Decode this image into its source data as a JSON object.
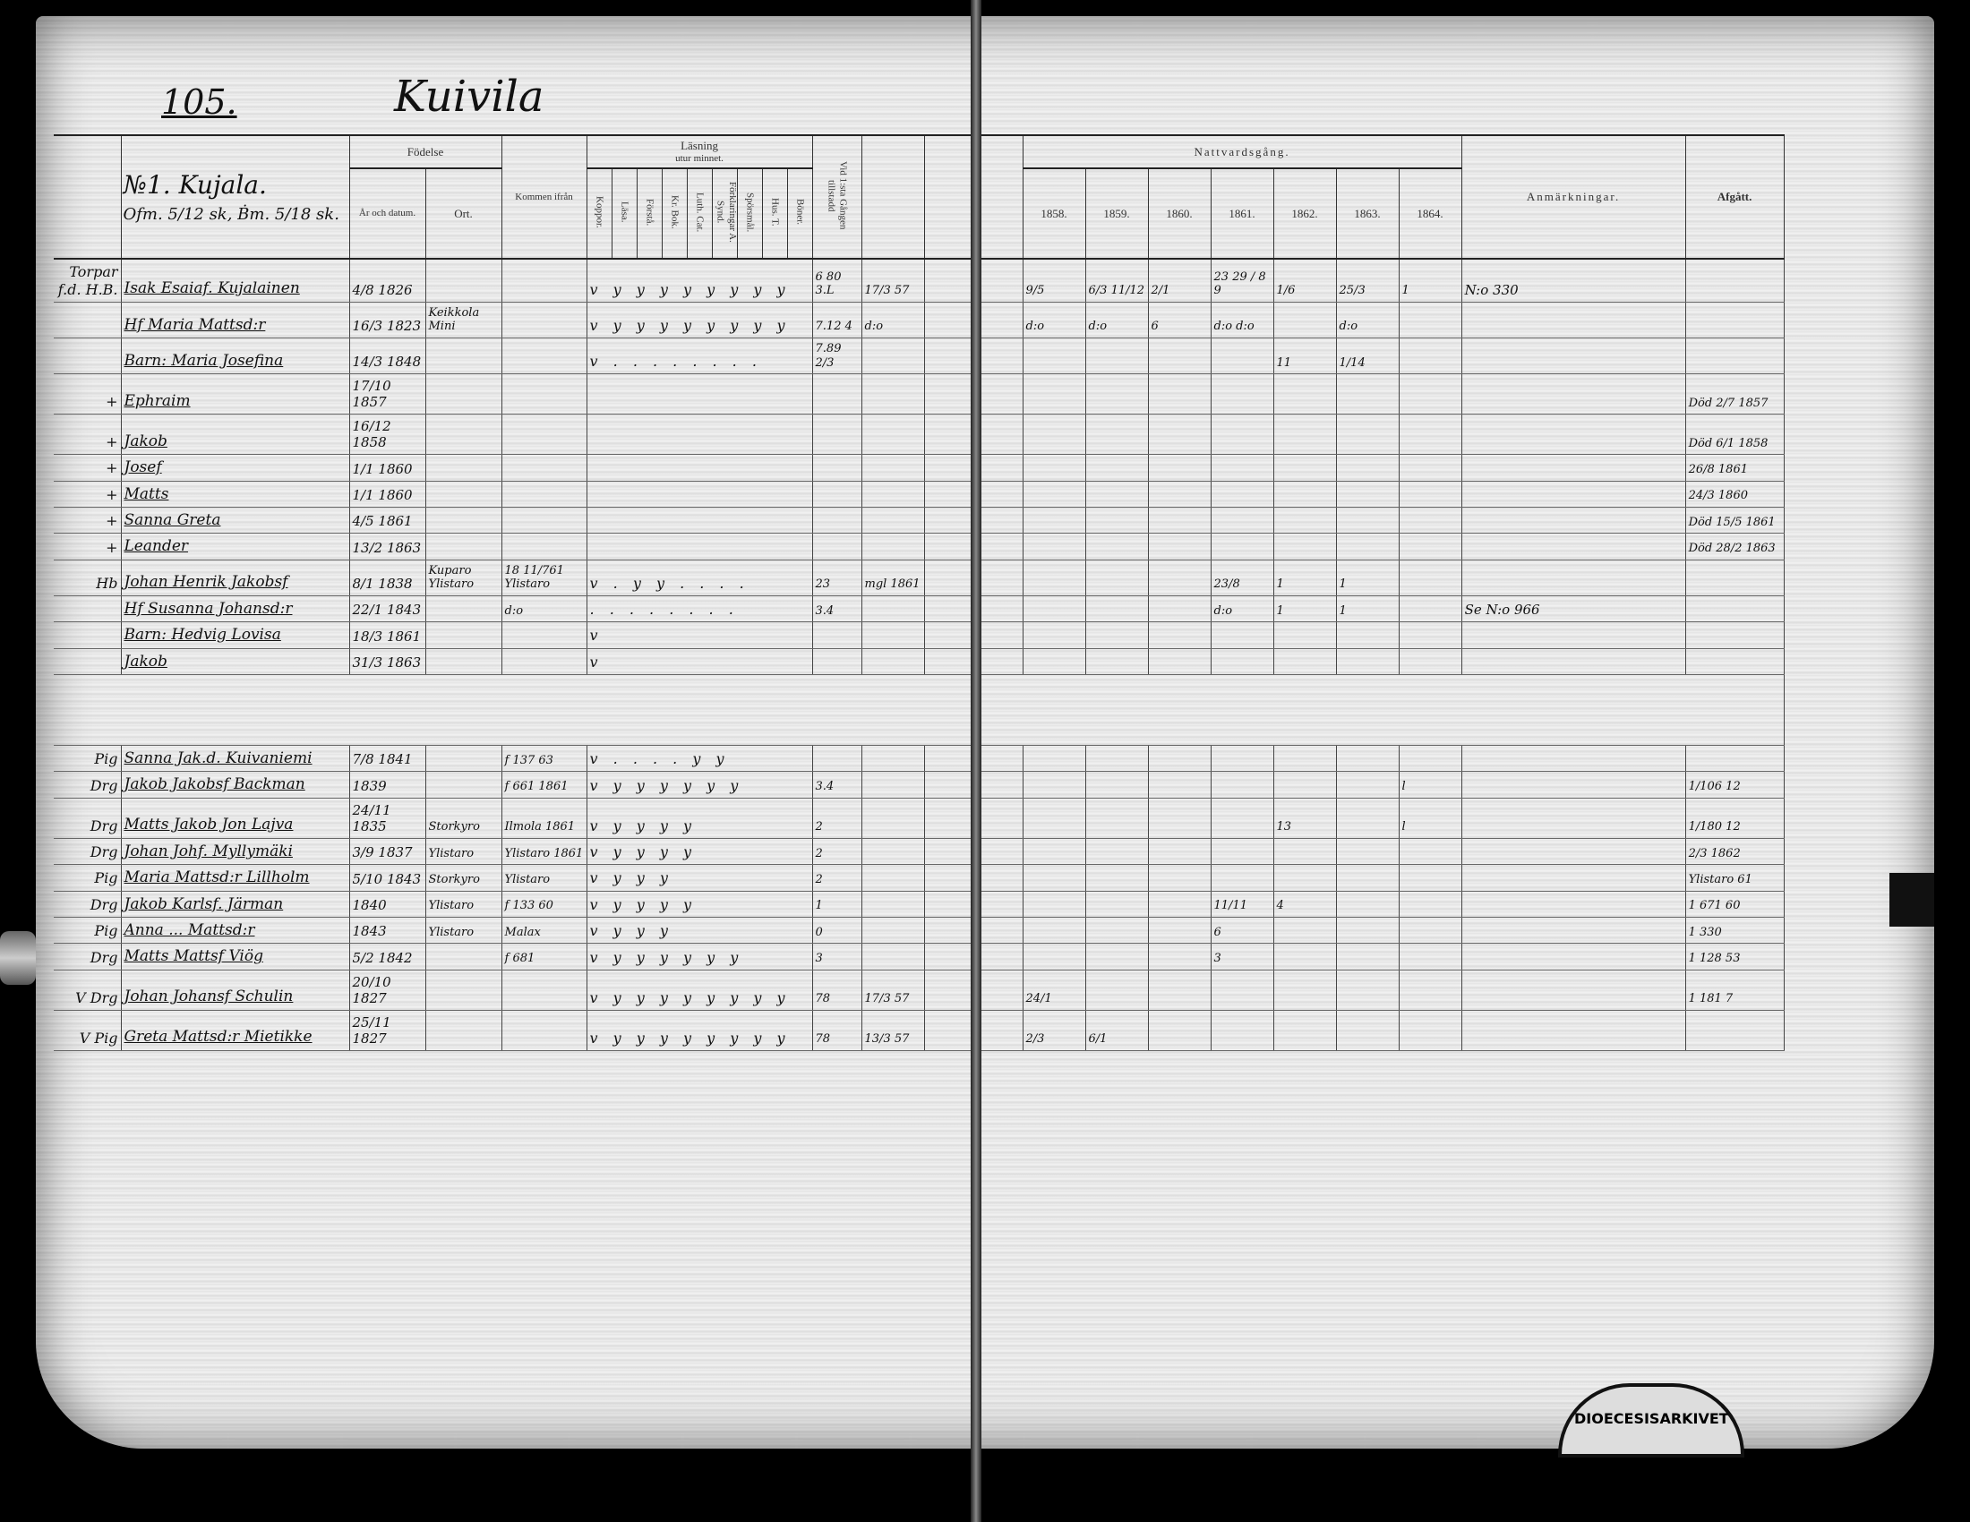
{
  "title": {
    "page_number": "105.",
    "village": "Kuivila"
  },
  "farm": {
    "name": "№1. Kujala.",
    "tax": "Ofm. 5/12 sk, Ḃm. 5/18 sk."
  },
  "headers": {
    "birth": "Födelse",
    "birth_year": "År och datum.",
    "birth_place": "Ort.",
    "came_from": "Kommen ifrån",
    "reading": "Läsning",
    "reading_sub": "utur minnet.",
    "cols": [
      "Koppor.",
      "Läsa.",
      "Förstå.",
      "Kr. Bok.",
      "Luth. Cat.",
      "Förklaringar A. Synd.",
      "Spörsmål.",
      "Hus. T.",
      "Böner."
    ],
    "communion_allowed": "Vid 1:sta Gången tillstadd",
    "communion": "Nattvardsgång.",
    "years": [
      "1858.",
      "1859.",
      "1860.",
      "1861.",
      "1862.",
      "1863.",
      "1864."
    ],
    "remarks": "Anmärkningar.",
    "departed": "Afgått."
  },
  "entries": [
    {
      "mark": "Torpar f.d. H.B.",
      "name": "Isak Esaiaf. Kujalainen",
      "birth": "4/8 1826",
      "place": "",
      "from": "",
      "reading": "v y y y y y y y y",
      "allowed": "6 80 3.L",
      "note": "17/3 57",
      "communion": [
        "9/5",
        "6/3 11/12",
        "2/1",
        "23 29 / 8 9",
        "1/6",
        "25/3",
        "1"
      ],
      "remark": "N:o 330",
      "departed": ""
    },
    {
      "mark": "",
      "name": "Hf Maria Mattsd:r",
      "birth": "16/3 1823",
      "place": "Keikkola Mini",
      "from": "",
      "reading": "v y y y y y y y y",
      "allowed": "7.12 4",
      "note": "d:o",
      "communion": [
        "d:o",
        "d:o",
        "6",
        "d:o d:o",
        "",
        "d:o",
        ""
      ],
      "remark": "",
      "departed": ""
    },
    {
      "mark": "",
      "name": "Barn: Maria Josefina",
      "birth": "14/3 1848",
      "place": "",
      "from": "",
      "reading": "v . . . . . . . .",
      "allowed": "7.89 2/3",
      "note": "",
      "communion": [
        "",
        "",
        "",
        "",
        "11",
        "1/14",
        ""
      ],
      "remark": "",
      "departed": ""
    },
    {
      "mark": "+",
      "name": "Ephraim",
      "birth": "17/10 1857",
      "place": "",
      "from": "",
      "reading": "",
      "allowed": "",
      "note": "",
      "communion": [
        "",
        "",
        "",
        "",
        "",
        "",
        ""
      ],
      "remark": "",
      "departed": "Död 2/7 1857"
    },
    {
      "mark": "+",
      "name": "Jakob",
      "birth": "16/12 1858",
      "place": "",
      "from": "",
      "reading": "",
      "allowed": "",
      "note": "",
      "communion": [
        "",
        "",
        "",
        "",
        "",
        "",
        ""
      ],
      "remark": "",
      "departed": "Död 6/1 1858"
    },
    {
      "mark": "+",
      "name": "Josef",
      "birth": "1/1 1860",
      "place": "",
      "from": "",
      "reading": "",
      "allowed": "",
      "note": "",
      "communion": [
        "",
        "",
        "",
        "",
        "",
        "",
        ""
      ],
      "remark": "",
      "departed": "26/8 1861"
    },
    {
      "mark": "+",
      "name": "Matts",
      "birth": "1/1 1860",
      "place": "",
      "from": "",
      "reading": "",
      "allowed": "",
      "note": "",
      "communion": [
        "",
        "",
        "",
        "",
        "",
        "",
        ""
      ],
      "remark": "",
      "departed": "24/3 1860"
    },
    {
      "mark": "+",
      "name": "Sanna Greta",
      "birth": "4/5 1861",
      "place": "",
      "from": "",
      "reading": "",
      "allowed": "",
      "note": "",
      "communion": [
        "",
        "",
        "",
        "",
        "",
        "",
        ""
      ],
      "remark": "",
      "departed": "Död 15/5 1861"
    },
    {
      "mark": "+",
      "name": "Leander",
      "birth": "13/2 1863",
      "place": "",
      "from": "",
      "reading": "",
      "allowed": "",
      "note": "",
      "communion": [
        "",
        "",
        "",
        "",
        "",
        "",
        ""
      ],
      "remark": "",
      "departed": "Död 28/2 1863"
    },
    {
      "mark": "Hb",
      "name": "Johan Henrik Jakobsf",
      "birth": "8/1 1838",
      "place": "Kuparo Ylistaro",
      "from": "18 11/761 Ylistaro",
      "reading": "v . y y . . . .",
      "allowed": "23",
      "note": "mgl 1861",
      "communion": [
        "",
        "",
        "",
        "23/8",
        "1",
        "1",
        ""
      ],
      "remark": "",
      "departed": ""
    },
    {
      "mark": "",
      "name": "Hf Susanna Johansd:r",
      "birth": "22/1 1843",
      "place": "",
      "from": "d:o",
      "reading": ". . . . . . . .",
      "allowed": "3.4",
      "note": "",
      "communion": [
        "",
        "",
        "",
        "d:o",
        "1",
        "1",
        ""
      ],
      "remark": "Se N:o 966",
      "departed": ""
    },
    {
      "mark": "",
      "name": "Barn: Hedvig Lovisa",
      "birth": "18/3 1861",
      "place": "",
      "from": "",
      "reading": "v",
      "allowed": "",
      "note": "",
      "communion": [
        "",
        "",
        "",
        "",
        "",
        "",
        ""
      ],
      "remark": "",
      "departed": ""
    },
    {
      "mark": "",
      "name": "Jakob",
      "birth": "31/3 1863",
      "place": "",
      "from": "",
      "reading": "v",
      "allowed": "",
      "note": "",
      "communion": [
        "",
        "",
        "",
        "",
        "",
        "",
        ""
      ],
      "remark": "",
      "departed": ""
    }
  ],
  "servants": [
    {
      "mark": "Pig",
      "name": "Sanna Jak.d. Kuivaniemi",
      "birth": "7/8 1841",
      "place": "",
      "from": "f 137 63",
      "reading": "v . . . . y y",
      "allowed": "",
      "note": "",
      "communion": [
        "",
        "",
        "",
        "",
        "",
        "",
        ""
      ],
      "remark": "",
      "departed": ""
    },
    {
      "mark": "Drg",
      "name": "Jakob Jakobsf Backman",
      "birth": "1839",
      "place": "",
      "from": "f 661 1861",
      "reading": "v y y y y y y",
      "allowed": "3.4",
      "note": "",
      "communion": [
        "",
        "",
        "",
        "",
        "",
        "",
        "l"
      ],
      "remark": "",
      "departed": "1/106 12"
    },
    {
      "mark": "Drg",
      "name": "Matts Jakob Jon Lajva",
      "birth": "24/11 1835",
      "place": "Storkyro",
      "from": "Ilmola 1861",
      "reading": "v y y y y",
      "allowed": "2",
      "note": "",
      "communion": [
        "",
        "",
        "",
        "",
        "13",
        "",
        "l"
      ],
      "remark": "",
      "departed": "1/180 12"
    },
    {
      "mark": "Drg",
      "name": "Johan Johf. Myllymäki",
      "birth": "3/9 1837",
      "place": "Ylistaro",
      "from": "Ylistaro 1861",
      "reading": "v y y y y",
      "allowed": "2",
      "note": "",
      "communion": [
        "",
        "",
        "",
        "",
        "",
        "",
        ""
      ],
      "remark": "",
      "departed": "2/3 1862"
    },
    {
      "mark": "Pig",
      "name": "Maria Mattsd:r Lillholm",
      "birth": "5/10 1843",
      "place": "Storkyro",
      "from": "Ylistaro",
      "reading": "v y y y",
      "allowed": "2",
      "note": "",
      "communion": [
        "",
        "",
        "",
        "",
        "",
        "",
        ""
      ],
      "remark": "",
      "departed": "Ylistaro 61"
    },
    {
      "mark": "Drg",
      "name": "Jakob Karlsf. Järman",
      "birth": "1840",
      "place": "Ylistaro",
      "from": "f 133 60",
      "reading": "v y y y y",
      "allowed": "1",
      "note": "",
      "communion": [
        "",
        "",
        "",
        "11/11",
        "4",
        "",
        ""
      ],
      "remark": "",
      "departed": "1 671 60"
    },
    {
      "mark": "Pig",
      "name": "Anna ... Mattsd:r",
      "birth": "1843",
      "place": "Ylistaro",
      "from": "Malax",
      "reading": "v y y y",
      "allowed": "0",
      "note": "",
      "communion": [
        "",
        "",
        "",
        "6",
        "",
        "",
        ""
      ],
      "remark": "",
      "departed": "1 330"
    },
    {
      "mark": "Drg",
      "name": "Matts Mattsf Viög",
      "birth": "5/2 1842",
      "place": "",
      "from": "f 681",
      "reading": "v y y y y y y",
      "allowed": "3",
      "note": "",
      "communion": [
        "",
        "",
        "",
        "3",
        "",
        "",
        ""
      ],
      "remark": "",
      "departed": "1 128 53"
    },
    {
      "mark": "V Drg",
      "name": "Johan Johansf Schulin",
      "birth": "20/10 1827",
      "place": "",
      "from": "",
      "reading": "v y y y y y y y y",
      "allowed": "78",
      "note": "17/3 57",
      "communion": [
        "24/1",
        "",
        "",
        "",
        "",
        "",
        ""
      ],
      "remark": "",
      "departed": "1 181 7"
    },
    {
      "mark": "V Pig",
      "name": "Greta Mattsd:r Mietikke",
      "birth": "25/11 1827",
      "place": "",
      "from": "",
      "reading": "v y y y y y y y y",
      "allowed": "78",
      "note": "13/3 57",
      "communion": [
        "2/3",
        "6/1",
        "",
        "",
        "",
        "",
        ""
      ],
      "remark": "",
      "departed": ""
    }
  ],
  "stamp": "DIOECESISARKIVET"
}
